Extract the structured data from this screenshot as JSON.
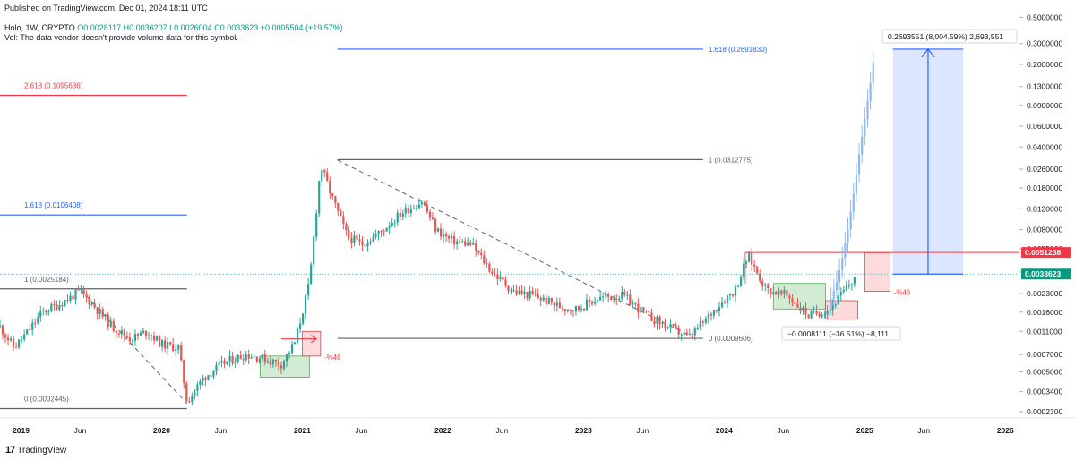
{
  "header": {
    "published": "Published on TradingView.com, Dec 01, 2024 18:11 UTC",
    "symbol": "Holo, 1W, CRYPTO",
    "ohlc": "O0.0028117 H0.0036207 L0.0026004 C0.0033623 +0.0005504 (+19.57%)",
    "volume_note": "Vol: The data vendor doesn't provide volume data for this symbol."
  },
  "footer": {
    "brand": "TradingView"
  },
  "colors": {
    "up": "#26a69a",
    "down": "#ef5350",
    "projection": "#90b8f0",
    "fib_blue": "#2962ff",
    "fib_red": "#f23645",
    "fib_gray": "#5d606b",
    "price_label": "#089981",
    "resistance_label": "#f23645"
  },
  "chart_data": {
    "type": "candlestick",
    "scale": "log",
    "yticks": [
      0.5,
      0.3,
      0.2,
      0.13,
      0.09,
      0.06,
      0.04,
      0.026,
      0.018,
      0.012,
      0.008,
      0.0055,
      0.0035,
      0.0023,
      0.0016,
      0.0011,
      0.0007,
      0.0005,
      0.00034,
      0.00023
    ],
    "ytick_labels": [
      "0.5000000",
      "0.3000000",
      "0.2000000",
      "0.1300000",
      "0.0900000",
      "0.0600000",
      "0.0400000",
      "0.0260000",
      "0.0180000",
      "0.0120000",
      "0.0080000",
      "0.0055000",
      "0.0035000",
      "0.0023000",
      "0.0016000",
      "0.0011000",
      "0.0007000",
      "0.0005000",
      "0.0003400",
      "0.0002300"
    ],
    "ylim": [
      0.0002,
      0.55
    ],
    "xticks": [
      {
        "t": 2019.0,
        "label": "2019",
        "major": true
      },
      {
        "t": 2019.42,
        "label": "Jun",
        "major": false
      },
      {
        "t": 2020.0,
        "label": "2020",
        "major": true
      },
      {
        "t": 2020.42,
        "label": "Jun",
        "major": false
      },
      {
        "t": 2021.0,
        "label": "2021",
        "major": true
      },
      {
        "t": 2021.42,
        "label": "Jun",
        "major": false
      },
      {
        "t": 2022.0,
        "label": "2022",
        "major": true
      },
      {
        "t": 2022.42,
        "label": "Jun",
        "major": false
      },
      {
        "t": 2023.0,
        "label": "2023",
        "major": true
      },
      {
        "t": 2023.42,
        "label": "Jun",
        "major": false
      },
      {
        "t": 2024.0,
        "label": "2024",
        "major": true
      },
      {
        "t": 2024.42,
        "label": "Jun",
        "major": false
      },
      {
        "t": 2025.0,
        "label": "2025",
        "major": true
      },
      {
        "t": 2025.42,
        "label": "Jun",
        "major": false
      },
      {
        "t": 2026.0,
        "label": "2026",
        "major": true
      }
    ],
    "xlim": [
      2018.85,
      2026.1
    ],
    "anchors": [
      [
        2018.85,
        0.0012
      ],
      [
        2018.95,
        0.0008
      ],
      [
        2019.05,
        0.0011
      ],
      [
        2019.15,
        0.0016
      ],
      [
        2019.28,
        0.0019
      ],
      [
        2019.42,
        0.0024
      ],
      [
        2019.52,
        0.0018
      ],
      [
        2019.65,
        0.0012
      ],
      [
        2019.78,
        0.00095
      ],
      [
        2019.9,
        0.0011
      ],
      [
        2020.0,
        0.00085
      ],
      [
        2020.12,
        0.0008
      ],
      [
        2020.18,
        0.00028
      ],
      [
        2020.3,
        0.00045
      ],
      [
        2020.45,
        0.0006
      ],
      [
        2020.6,
        0.0007
      ],
      [
        2020.72,
        0.00065
      ],
      [
        2020.85,
        0.00058
      ],
      [
        2020.95,
        0.0009
      ],
      [
        2021.05,
        0.0028
      ],
      [
        2021.13,
        0.028
      ],
      [
        2021.22,
        0.014
      ],
      [
        2021.32,
        0.007
      ],
      [
        2021.42,
        0.006
      ],
      [
        2021.55,
        0.0075
      ],
      [
        2021.7,
        0.011
      ],
      [
        2021.85,
        0.014
      ],
      [
        2021.95,
        0.008
      ],
      [
        2022.05,
        0.0065
      ],
      [
        2022.2,
        0.006
      ],
      [
        2022.35,
        0.0035
      ],
      [
        2022.5,
        0.0024
      ],
      [
        2022.65,
        0.0022
      ],
      [
        2022.82,
        0.0018
      ],
      [
        2022.95,
        0.0017
      ],
      [
        2023.1,
        0.0021
      ],
      [
        2023.28,
        0.0022
      ],
      [
        2023.45,
        0.0015
      ],
      [
        2023.6,
        0.0012
      ],
      [
        2023.75,
        0.00098
      ],
      [
        2023.85,
        0.0013
      ],
      [
        2023.95,
        0.0018
      ],
      [
        2024.08,
        0.0025
      ],
      [
        2024.17,
        0.0048
      ],
      [
        2024.3,
        0.0025
      ],
      [
        2024.45,
        0.0022
      ],
      [
        2024.6,
        0.0015
      ],
      [
        2024.75,
        0.0017
      ],
      [
        2024.9,
        0.0028
      ],
      [
        2024.94,
        0.00336
      ]
    ],
    "projection": [
      [
        2024.76,
        0.0018
      ],
      [
        2024.8,
        0.0025
      ],
      [
        2024.84,
        0.004
      ],
      [
        2024.88,
        0.007
      ],
      [
        2024.92,
        0.014
      ],
      [
        2024.96,
        0.03
      ],
      [
        2025.0,
        0.06
      ],
      [
        2025.04,
        0.12
      ],
      [
        2025.08,
        0.27
      ]
    ],
    "fib_levels": [
      {
        "label": "2.618 (0.1095636)",
        "price": 0.1095636,
        "t0": 2018.85,
        "t1": 2020.18,
        "color": "fib_red",
        "label_side": "left"
      },
      {
        "label": "1.618 (0.0106408)",
        "price": 0.0106408,
        "t0": 2018.85,
        "t1": 2020.18,
        "color": "fib_blue",
        "label_side": "left"
      },
      {
        "label": "1 (0.0025184)",
        "price": 0.0025184,
        "t0": 2018.85,
        "t1": 2020.18,
        "color": "fib_gray",
        "label_side": "left"
      },
      {
        "label": "0 (0.0002445)",
        "price": 0.0002445,
        "t0": 2018.85,
        "t1": 2020.18,
        "color": "fib_gray",
        "label_side": "left"
      },
      {
        "label": "1.618 (0.2691830)",
        "price": 0.269183,
        "t0": 2021.25,
        "t1": 2023.85,
        "color": "fib_blue",
        "label_side": "right"
      },
      {
        "label": "1 (0.0312775)",
        "price": 0.0312775,
        "t0": 2021.25,
        "t1": 2023.85,
        "color": "fib_gray",
        "label_side": "right"
      },
      {
        "label": "0 (0.0009606)",
        "price": 0.0009606,
        "t0": 2021.25,
        "t1": 2023.85,
        "color": "fib_gray",
        "label_side": "right"
      }
    ],
    "trendlines": [
      {
        "from": [
          2019.42,
          0.0025
        ],
        "to": [
          2020.18,
          0.00027
        ]
      },
      {
        "from": [
          2021.25,
          0.031
        ],
        "to": [
          2023.78,
          0.00098
        ]
      }
    ],
    "accumulation_boxes": [
      {
        "t0": 2020.7,
        "t1": 2021.05,
        "p_low": 0.00045,
        "p_high": 0.00068
      },
      {
        "t0": 2024.35,
        "t1": 2024.72,
        "p_low": 0.0017,
        "p_high": 0.0028
      }
    ],
    "breakout_boxes": [
      {
        "t0": 2021.0,
        "t1": 2021.13,
        "p_low": 0.00068,
        "p_high": 0.0011,
        "label": "-%46"
      },
      {
        "t0": 2025.0,
        "t1": 2025.18,
        "p_low": 0.0024,
        "p_high": 0.0051,
        "label": "-%46"
      },
      {
        "t0": 2024.72,
        "t1": 2024.95,
        "p_low": 0.0014,
        "p_high": 0.002,
        "label": ""
      }
    ],
    "arrows": [
      {
        "from": [
          2020.85,
          0.00095
        ],
        "to": [
          2021.1,
          0.00095
        ]
      }
    ],
    "measure": {
      "t0": 2025.2,
      "t1": 2025.7,
      "p_low": 0.00336,
      "p_high": 0.2693551,
      "label": "0.2693551 (8,004.59%) 2,693,551"
    },
    "drawdown_label": "−0.0008111 (−36.51%) −8,111",
    "resistance": {
      "price": 0.0051238,
      "t0": 2024.15,
      "label": "0.0051238"
    },
    "last_price": {
      "price": 0.0033623,
      "label": "0.0033623"
    }
  }
}
